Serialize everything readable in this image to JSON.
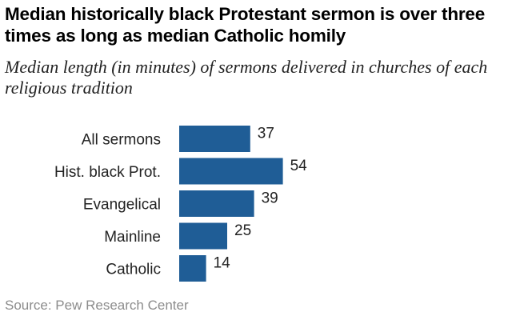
{
  "chart_data": {
    "type": "bar",
    "orientation": "horizontal",
    "title": "Median historically black Protestant sermon is over three times as long as median Catholic homily",
    "subtitle": "Median length (in minutes) of sermons delivered in churches of each religious tradition",
    "categories": [
      "All sermons",
      "Hist. black Prot.",
      "Evangelical",
      "Mainline",
      "Catholic"
    ],
    "values": [
      37,
      54,
      39,
      25,
      14
    ],
    "bar_color": "#1f5d96",
    "xlim": [
      0,
      60
    ],
    "grid": false,
    "legend": "none"
  },
  "source": "Source: Pew Research Center"
}
